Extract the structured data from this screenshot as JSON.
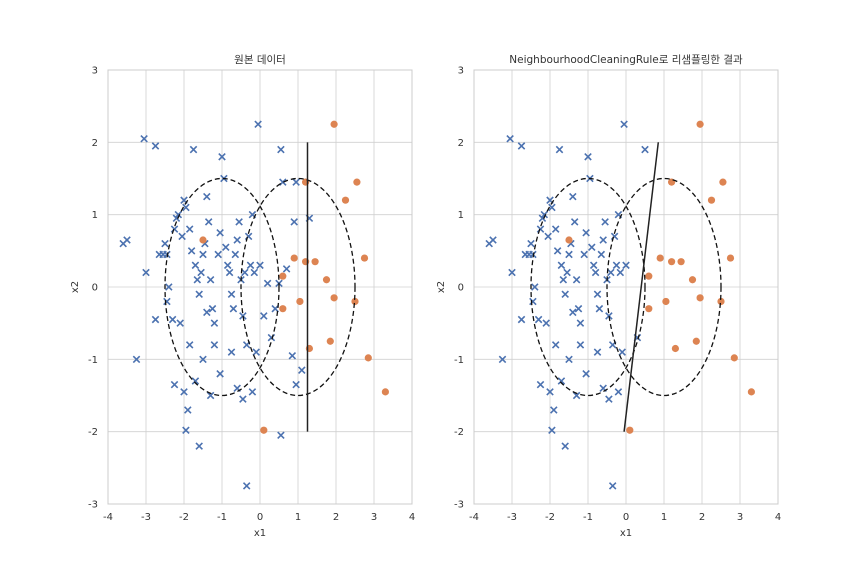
{
  "chart_data": [
    {
      "type": "scatter",
      "title": "원본 데이터",
      "xlabel": "x1",
      "ylabel": "x2",
      "xlim": [
        -4,
        4
      ],
      "ylim": [
        -3,
        3
      ],
      "xticks": [
        "-4",
        "-3",
        "-2",
        "-1",
        "0",
        "1",
        "2",
        "3",
        "4"
      ],
      "yticks": [
        "-3",
        "-2",
        "-1",
        "0",
        "1",
        "2",
        "3"
      ],
      "grid": true,
      "series": [
        {
          "marker": "x",
          "color": "#4c72b0",
          "points": [
            [
              -3.6,
              0.6
            ],
            [
              -3.5,
              0.65
            ],
            [
              -3.05,
              2.05
            ],
            [
              -3.0,
              0.2
            ],
            [
              -2.75,
              1.95
            ],
            [
              -2.65,
              0.45
            ],
            [
              -2.55,
              0.45
            ],
            [
              -2.5,
              0.6
            ],
            [
              -2.45,
              0.45
            ],
            [
              -2.4,
              0.0
            ],
            [
              -2.45,
              -0.2
            ],
            [
              -2.3,
              -0.45
            ],
            [
              -2.25,
              0.8
            ],
            [
              -2.2,
              0.95
            ],
            [
              -2.15,
              1.0
            ],
            [
              -2.05,
              0.7
            ],
            [
              -2.0,
              1.2
            ],
            [
              -1.95,
              1.1
            ],
            [
              -1.85,
              0.8
            ],
            [
              -1.8,
              0.5
            ],
            [
              -1.75,
              1.9
            ],
            [
              -1.7,
              0.3
            ],
            [
              -1.65,
              0.1
            ],
            [
              -1.6,
              -0.1
            ],
            [
              -1.55,
              0.2
            ],
            [
              -1.5,
              0.45
            ],
            [
              -1.45,
              0.6
            ],
            [
              -1.4,
              1.25
            ],
            [
              -1.35,
              0.9
            ],
            [
              -1.3,
              0.1
            ],
            [
              -1.25,
              -0.3
            ],
            [
              -1.2,
              -0.5
            ],
            [
              -1.1,
              0.45
            ],
            [
              -1.05,
              0.75
            ],
            [
              -1.0,
              1.8
            ],
            [
              -0.95,
              1.5
            ],
            [
              -0.9,
              0.55
            ],
            [
              -0.85,
              0.3
            ],
            [
              -0.8,
              0.2
            ],
            [
              -0.75,
              -0.1
            ],
            [
              -0.7,
              -0.3
            ],
            [
              -0.65,
              0.45
            ],
            [
              -0.6,
              0.65
            ],
            [
              -0.55,
              0.9
            ],
            [
              -0.5,
              0.1
            ],
            [
              -0.45,
              -0.4
            ],
            [
              -0.4,
              0.2
            ],
            [
              -0.35,
              -0.8
            ],
            [
              -0.3,
              0.7
            ],
            [
              -0.25,
              0.3
            ],
            [
              -0.2,
              1.0
            ],
            [
              -0.15,
              0.2
            ],
            [
              -0.1,
              -0.9
            ],
            [
              -0.05,
              2.25
            ],
            [
              0.0,
              0.3
            ],
            [
              0.1,
              -0.4
            ],
            [
              0.2,
              0.05
            ],
            [
              0.3,
              -0.7
            ],
            [
              0.4,
              -0.3
            ],
            [
              0.5,
              0.05
            ],
            [
              0.55,
              1.9
            ],
            [
              0.6,
              1.45
            ],
            [
              0.7,
              0.25
            ],
            [
              0.85,
              -0.95
            ],
            [
              0.9,
              0.9
            ],
            [
              0.95,
              1.45
            ],
            [
              0.95,
              -1.35
            ],
            [
              1.1,
              -1.15
            ],
            [
              1.3,
              0.95
            ],
            [
              -2.0,
              -1.45
            ],
            [
              -1.95,
              -1.98
            ],
            [
              -1.9,
              -1.7
            ],
            [
              -1.6,
              -2.2
            ],
            [
              -1.5,
              -1.0
            ],
            [
              -1.3,
              -1.5
            ],
            [
              -1.05,
              -1.2
            ],
            [
              -0.75,
              -0.9
            ],
            [
              -0.6,
              -1.4
            ],
            [
              -0.45,
              -1.55
            ],
            [
              -0.35,
              -2.75
            ],
            [
              -0.2,
              -1.45
            ],
            [
              0.55,
              -2.05
            ],
            [
              -3.25,
              -1.0
            ],
            [
              -2.75,
              -0.45
            ],
            [
              -2.25,
              -1.35
            ],
            [
              -2.1,
              -0.5
            ],
            [
              -1.85,
              -0.8
            ],
            [
              -1.7,
              -1.3
            ],
            [
              -1.4,
              -0.35
            ],
            [
              -1.2,
              -0.8
            ]
          ]
        },
        {
          "marker": "o",
          "color": "#dd8452",
          "points": [
            [
              0.6,
              0.15
            ],
            [
              0.9,
              0.4
            ],
            [
              1.05,
              -0.2
            ],
            [
              1.2,
              1.45
            ],
            [
              1.2,
              0.35
            ],
            [
              1.3,
              -0.85
            ],
            [
              1.45,
              0.35
            ],
            [
              1.75,
              0.1
            ],
            [
              1.85,
              -0.75
            ],
            [
              1.95,
              -0.15
            ],
            [
              1.95,
              2.25
            ],
            [
              2.25,
              1.2
            ],
            [
              2.5,
              -0.2
            ],
            [
              2.55,
              1.45
            ],
            [
              2.75,
              0.4
            ],
            [
              2.85,
              -0.98
            ],
            [
              3.3,
              -1.45
            ],
            [
              0.1,
              -1.98
            ],
            [
              0.6,
              -0.3
            ],
            [
              -1.5,
              0.65
            ]
          ]
        }
      ],
      "ellipses": [
        {
          "cx": -1,
          "cy": 0,
          "rx": 1.5,
          "ry": 1.5
        },
        {
          "cx": 1,
          "cy": 0,
          "rx": 1.5,
          "ry": 1.5
        }
      ],
      "decision_line": [
        [
          1.25,
          2.0
        ],
        [
          1.25,
          -2.0
        ]
      ]
    },
    {
      "type": "scatter",
      "title": "NeighbourhoodCleaningRule로 리샘플링한 결과",
      "xlabel": "x1",
      "ylabel": "x2",
      "xlim": [
        -4,
        4
      ],
      "ylim": [
        -3,
        3
      ],
      "xticks": [
        "-4",
        "-3",
        "-2",
        "-1",
        "0",
        "1",
        "2",
        "3",
        "4"
      ],
      "yticks": [
        "-3",
        "-2",
        "-1",
        "0",
        "1",
        "2",
        "3"
      ],
      "grid": true,
      "series": [
        {
          "marker": "x",
          "color": "#4c72b0",
          "points": [
            [
              -3.6,
              0.6
            ],
            [
              -3.5,
              0.65
            ],
            [
              -3.05,
              2.05
            ],
            [
              -3.0,
              0.2
            ],
            [
              -2.75,
              1.95
            ],
            [
              -2.65,
              0.45
            ],
            [
              -2.55,
              0.45
            ],
            [
              -2.5,
              0.6
            ],
            [
              -2.45,
              0.45
            ],
            [
              -2.4,
              0.0
            ],
            [
              -2.45,
              -0.2
            ],
            [
              -2.3,
              -0.45
            ],
            [
              -2.25,
              0.8
            ],
            [
              -2.2,
              0.95
            ],
            [
              -2.15,
              1.0
            ],
            [
              -2.05,
              0.7
            ],
            [
              -2.0,
              1.2
            ],
            [
              -1.95,
              1.1
            ],
            [
              -1.85,
              0.8
            ],
            [
              -1.8,
              0.5
            ],
            [
              -1.75,
              1.9
            ],
            [
              -1.7,
              0.3
            ],
            [
              -1.65,
              0.1
            ],
            [
              -1.6,
              -0.1
            ],
            [
              -1.55,
              0.2
            ],
            [
              -1.5,
              0.45
            ],
            [
              -1.45,
              0.6
            ],
            [
              -1.4,
              1.25
            ],
            [
              -1.35,
              0.9
            ],
            [
              -1.3,
              0.1
            ],
            [
              -1.25,
              -0.3
            ],
            [
              -1.2,
              -0.5
            ],
            [
              -1.1,
              0.45
            ],
            [
              -1.05,
              0.75
            ],
            [
              -1.0,
              1.8
            ],
            [
              -0.95,
              1.5
            ],
            [
              -0.9,
              0.55
            ],
            [
              -0.85,
              0.3
            ],
            [
              -0.8,
              0.2
            ],
            [
              -0.75,
              -0.1
            ],
            [
              -0.7,
              -0.3
            ],
            [
              -0.65,
              0.45
            ],
            [
              -0.6,
              0.65
            ],
            [
              -0.55,
              0.9
            ],
            [
              -0.5,
              0.1
            ],
            [
              -0.45,
              -0.4
            ],
            [
              -0.4,
              0.2
            ],
            [
              -0.35,
              -0.8
            ],
            [
              -0.3,
              0.7
            ],
            [
              -0.25,
              0.3
            ],
            [
              -0.2,
              1.0
            ],
            [
              -0.15,
              0.2
            ],
            [
              -0.1,
              -0.9
            ],
            [
              -0.05,
              2.25
            ],
            [
              0.0,
              0.3
            ],
            [
              0.3,
              -0.7
            ],
            [
              0.5,
              1.9
            ],
            [
              -2.0,
              -1.45
            ],
            [
              -1.95,
              -1.98
            ],
            [
              -1.9,
              -1.7
            ],
            [
              -1.6,
              -2.2
            ],
            [
              -1.5,
              -1.0
            ],
            [
              -1.3,
              -1.5
            ],
            [
              -1.05,
              -1.2
            ],
            [
              -0.75,
              -0.9
            ],
            [
              -0.6,
              -1.4
            ],
            [
              -0.45,
              -1.55
            ],
            [
              -0.35,
              -2.75
            ],
            [
              -0.2,
              -1.45
            ],
            [
              -3.25,
              -1.0
            ],
            [
              -2.75,
              -0.45
            ],
            [
              -2.25,
              -1.35
            ],
            [
              -2.1,
              -0.5
            ],
            [
              -1.85,
              -0.8
            ],
            [
              -1.7,
              -1.3
            ],
            [
              -1.4,
              -0.35
            ],
            [
              -1.2,
              -0.8
            ]
          ]
        },
        {
          "marker": "o",
          "color": "#dd8452",
          "points": [
            [
              0.6,
              0.15
            ],
            [
              0.9,
              0.4
            ],
            [
              1.05,
              -0.2
            ],
            [
              1.2,
              1.45
            ],
            [
              1.2,
              0.35
            ],
            [
              1.3,
              -0.85
            ],
            [
              1.45,
              0.35
            ],
            [
              1.75,
              0.1
            ],
            [
              1.85,
              -0.75
            ],
            [
              1.95,
              -0.15
            ],
            [
              1.95,
              2.25
            ],
            [
              2.25,
              1.2
            ],
            [
              2.5,
              -0.2
            ],
            [
              2.55,
              1.45
            ],
            [
              2.75,
              0.4
            ],
            [
              2.85,
              -0.98
            ],
            [
              3.3,
              -1.45
            ],
            [
              0.1,
              -1.98
            ],
            [
              0.6,
              -0.3
            ],
            [
              -1.5,
              0.65
            ]
          ]
        }
      ],
      "ellipses": [
        {
          "cx": -1,
          "cy": 0,
          "rx": 1.5,
          "ry": 1.5
        },
        {
          "cx": 1,
          "cy": 0,
          "rx": 1.5,
          "ry": 1.5
        }
      ],
      "decision_line": [
        [
          -0.05,
          -2.0
        ],
        [
          0.85,
          2.0
        ]
      ]
    }
  ]
}
